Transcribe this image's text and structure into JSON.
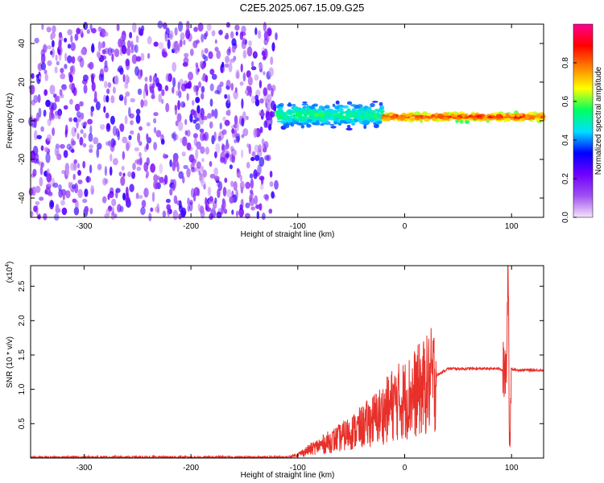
{
  "title": "C2E5.2025.067.15.09.G25",
  "chart_data": [
    {
      "type": "heatmap",
      "xlabel": "Height of straight line (km)",
      "ylabel": "Frequency (Hz)",
      "xlim": [
        -350,
        130
      ],
      "ylim": [
        -50,
        50
      ],
      "xticks": [
        -300,
        -200,
        -100,
        0,
        100
      ],
      "yticks": [
        -40,
        -20,
        0,
        20,
        40
      ],
      "colorbar": {
        "label": "Normalized spectral amplitude",
        "range": [
          0.0,
          1.0
        ],
        "ticks": [
          0.0,
          0.2,
          0.4,
          0.6,
          0.8
        ],
        "colormap": [
          "#f4e4fb",
          "#a050f0",
          "#7000ff",
          "#0000ff",
          "#00e0ff",
          "#00ff60",
          "#ffff00",
          "#ff8000",
          "#ff0000",
          "#ff0090"
        ]
      },
      "regions": [
        {
          "x": [
            -350,
            -120
          ],
          "description": "noise",
          "amplitude": [
            0.05,
            0.3
          ]
        },
        {
          "x": [
            -120,
            -20
          ],
          "center_freq": 3,
          "halfwidth": 8,
          "amplitude": [
            0.3,
            0.6
          ]
        },
        {
          "x": [
            -20,
            130
          ],
          "center_freq": 2,
          "halfwidth": 3,
          "amplitude": [
            0.5,
            0.95
          ]
        }
      ]
    },
    {
      "type": "line",
      "xlabel": "Height of straight line (km)",
      "ylabel": "SNR (10 * v/v)",
      "scale_label": "(x10",
      "scale_exp": "4",
      "xlim": [
        -350,
        130
      ],
      "ylim": [
        0,
        2.8
      ],
      "xticks": [
        -300,
        -200,
        -100,
        0,
        100
      ],
      "yticks": [
        0.5,
        1.0,
        1.5,
        2.0,
        2.5
      ],
      "ytick_labels": [
        "0.5",
        "1.0",
        "1.5",
        "2.0",
        "2.5"
      ],
      "color": "#e8302a",
      "series": [
        {
          "x": [
            -350,
            -110,
            -100,
            -80,
            -60,
            -40,
            -20,
            -10,
            0,
            20,
            30,
            40,
            60,
            80,
            90,
            95,
            97,
            98,
            100,
            105,
            130
          ],
          "y": [
            0.01,
            0.01,
            0.05,
            0.18,
            0.3,
            0.45,
            0.65,
            0.8,
            0.85,
            1.05,
            1.2,
            1.3,
            1.3,
            1.3,
            1.3,
            1.2,
            2.8,
            0.1,
            1.3,
            1.28,
            1.28
          ]
        }
      ]
    }
  ]
}
